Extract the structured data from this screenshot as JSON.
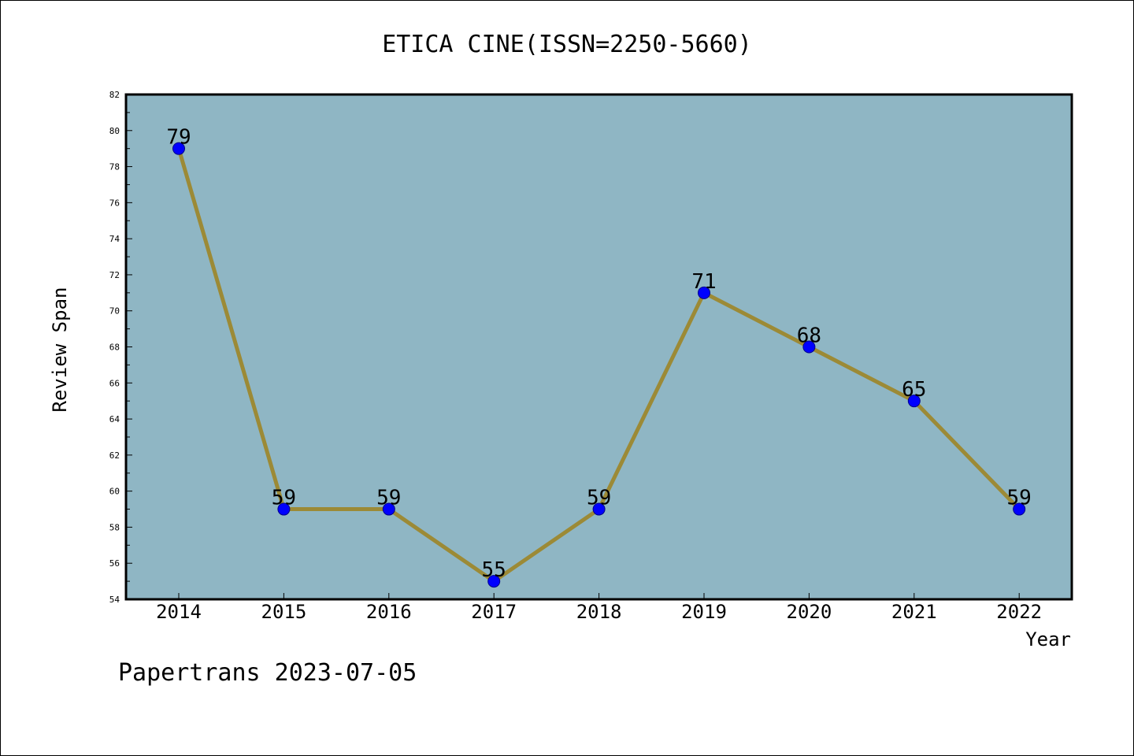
{
  "footer": "Papertrans 2023-07-05",
  "colors": {
    "plot_background": "#8fb6c4",
    "line": "#9c8a36",
    "marker": "#0000ff",
    "frame": "#000000"
  },
  "chart_data": {
    "type": "line",
    "title": "ETICA CINE(ISSN=2250-5660)",
    "xlabel": "Year",
    "ylabel": "Review Span",
    "x": [
      "2014",
      "2015",
      "2016",
      "2017",
      "2018",
      "2019",
      "2020",
      "2021",
      "2022"
    ],
    "series": [
      {
        "values": [
          79,
          59,
          59,
          55,
          59,
          71,
          68,
          65,
          59
        ]
      }
    ],
    "ylim": [
      54,
      82
    ],
    "yticks": [
      54,
      56,
      58,
      60,
      62,
      64,
      66,
      68,
      70,
      72,
      74,
      76,
      78,
      80,
      82
    ],
    "data_labels": true,
    "grid": false
  }
}
